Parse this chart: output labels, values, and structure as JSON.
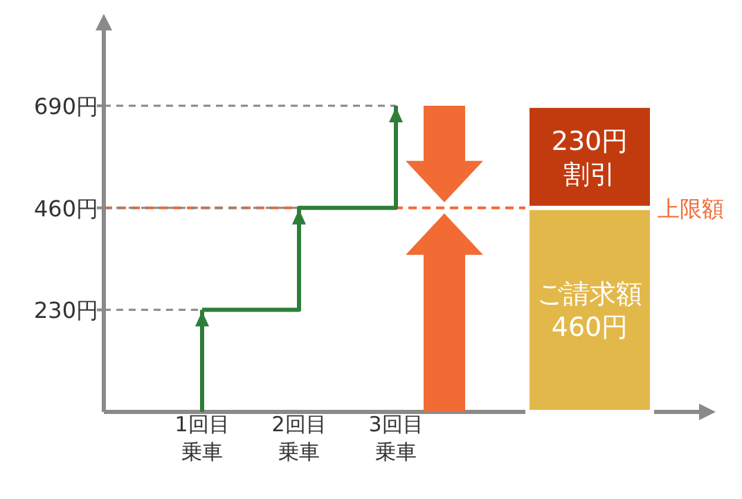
{
  "chart_data": {
    "type": "step",
    "categories": [
      "1回目乗車",
      "2回目乗車",
      "3回目乗車",
      null,
      null
    ],
    "series": [
      {
        "color": "#2e7d3a",
        "values": [
          230,
          460,
          690,
          null,
          null
        ]
      },
      {
        "type": "bar",
        "name": "ご請求額460円",
        "color": "#e3b84a",
        "values": [
          null,
          null,
          null,
          null,
          460
        ]
      },
      {
        "type": "bar",
        "name": "230円割引",
        "color": "#c23b0e",
        "values": [
          null,
          null,
          null,
          null,
          230
        ]
      }
    ],
    "stacked": true,
    "ylim": [
      0,
      860
    ],
    "yticks": [
      {
        "value": 230,
        "label": "230円"
      },
      {
        "value": 460,
        "label": "460円"
      },
      {
        "value": 690,
        "label": "690円"
      }
    ],
    "ref_lines": [
      {
        "axis": "y",
        "value": 460,
        "label": "上限額",
        "color": "#f26b35",
        "line_style": "dashed"
      }
    ],
    "legend": false,
    "grid": false
  }
}
